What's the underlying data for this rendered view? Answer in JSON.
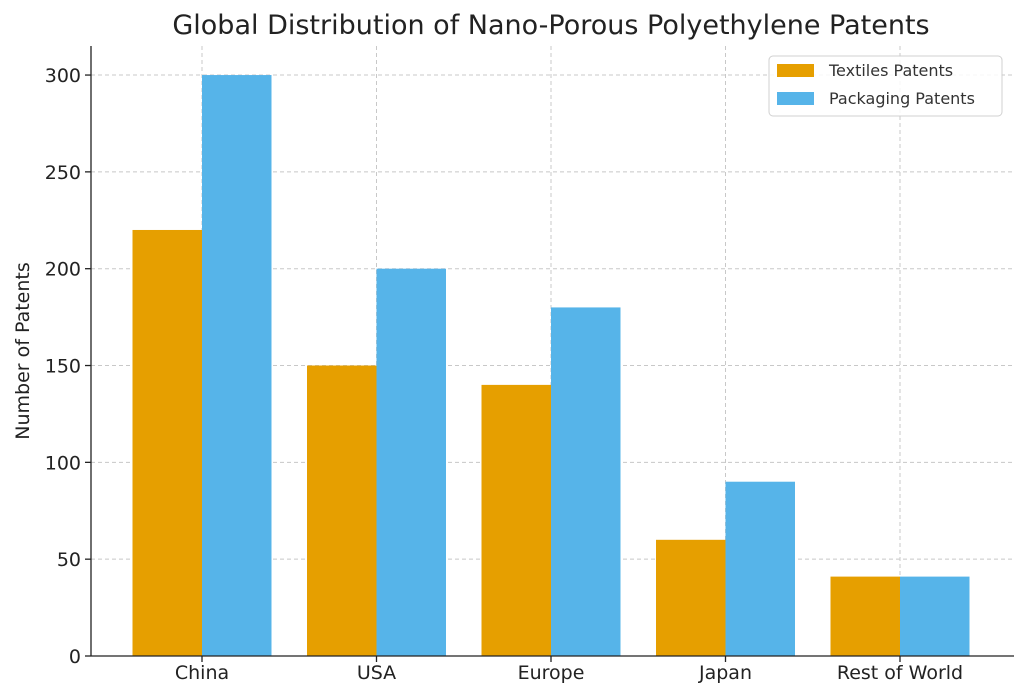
{
  "chart_data": {
    "type": "bar",
    "title": "Global Distribution of Nano-Porous Polyethylene Patents",
    "xlabel": "",
    "ylabel": "Number of Patents",
    "categories": [
      "China",
      "USA",
      "Europe",
      "Japan",
      "Rest of World"
    ],
    "series": [
      {
        "name": "Textiles Patents",
        "color": "#e69f00",
        "values": [
          220,
          150,
          140,
          60,
          41
        ]
      },
      {
        "name": "Packaging Patents",
        "color": "#56b4e9",
        "values": [
          300,
          200,
          180,
          90,
          41
        ]
      }
    ],
    "ylim": [
      0,
      315
    ],
    "yticks": [
      0,
      50,
      100,
      150,
      200,
      250,
      300
    ],
    "grid": true,
    "legend_position": "top-right"
  }
}
